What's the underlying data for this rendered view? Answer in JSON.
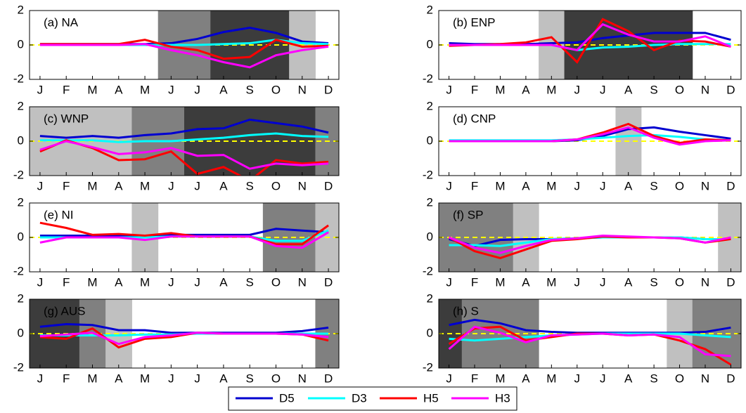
{
  "chart_data": [
    {
      "type": "line",
      "title": "(a) NA",
      "categories": [
        "J",
        "F",
        "M",
        "A",
        "M",
        "J",
        "J",
        "A",
        "S",
        "O",
        "N",
        "D"
      ],
      "ylim": [
        -2,
        2
      ],
      "yticks": [
        -2,
        0,
        2
      ],
      "hline": 0,
      "hline_color": "#ffff00",
      "shade": [
        null,
        null,
        null,
        null,
        null,
        "#808080",
        "#808080",
        "#3c3c3c",
        "#3c3c3c",
        "#3c3c3c",
        "#c0c0c0",
        null
      ],
      "series": [
        {
          "name": "D5",
          "color": "#0000d0",
          "values": [
            0.05,
            0.05,
            0.05,
            0.05,
            0.05,
            0.1,
            0.35,
            0.75,
            1.0,
            0.7,
            0.2,
            0.1
          ]
        },
        {
          "name": "D3",
          "color": "#00ffff",
          "values": [
            0,
            0,
            0,
            0,
            0,
            0,
            0,
            0.05,
            0.1,
            0.3,
            0.1,
            0.05
          ]
        },
        {
          "name": "H5",
          "color": "#ff0000",
          "values": [
            0.05,
            0.05,
            0.05,
            0.05,
            0.3,
            -0.1,
            -0.3,
            -0.8,
            -0.7,
            0.3,
            -0.1,
            -0.05
          ]
        },
        {
          "name": "H3",
          "color": "#ff00ff",
          "values": [
            0,
            0,
            0,
            0,
            0.05,
            -0.3,
            -0.6,
            -1.0,
            -1.3,
            -0.6,
            -0.3,
            -0.1
          ]
        }
      ]
    },
    {
      "type": "line",
      "title": "(b) ENP",
      "categories": [
        "J",
        "F",
        "M",
        "A",
        "M",
        "J",
        "J",
        "A",
        "S",
        "O",
        "N",
        "D"
      ],
      "ylim": [
        -2,
        2
      ],
      "yticks": [
        -2,
        0,
        2
      ],
      "hline": 0,
      "hline_color": "#ffff00",
      "shade": [
        null,
        null,
        null,
        null,
        "#c0c0c0",
        "#3c3c3c",
        "#3c3c3c",
        "#3c3c3c",
        "#3c3c3c",
        "#3c3c3c",
        null,
        null
      ],
      "series": [
        {
          "name": "D5",
          "color": "#0000d0",
          "values": [
            0.1,
            0.05,
            0.05,
            0.05,
            0.1,
            0.15,
            0.4,
            0.55,
            0.7,
            0.7,
            0.7,
            0.3
          ]
        },
        {
          "name": "D3",
          "color": "#00ffff",
          "values": [
            0,
            0,
            0,
            0,
            0,
            -0.3,
            -0.15,
            -0.1,
            0,
            0.05,
            0.05,
            0.05
          ]
        },
        {
          "name": "H5",
          "color": "#ff0000",
          "values": [
            -0.05,
            0,
            0.05,
            0.15,
            0.45,
            -1.0,
            1.5,
            0.8,
            -0.3,
            0.25,
            0.2,
            -0.1
          ]
        },
        {
          "name": "H3",
          "color": "#ff00ff",
          "values": [
            0,
            0,
            0,
            0,
            0,
            -0.3,
            1.2,
            0.6,
            0.2,
            0.2,
            0.5,
            -0.1
          ]
        }
      ]
    },
    {
      "type": "line",
      "title": "(c) WNP",
      "categories": [
        "J",
        "F",
        "M",
        "A",
        "M",
        "J",
        "J",
        "A",
        "S",
        "O",
        "N",
        "D"
      ],
      "ylim": [
        -2,
        2
      ],
      "yticks": [
        -2,
        0,
        2
      ],
      "hline": 0,
      "hline_color": "#ffff00",
      "shade": [
        "#c0c0c0",
        "#c0c0c0",
        "#c0c0c0",
        "#c0c0c0",
        "#808080",
        "#808080",
        "#3c3c3c",
        "#3c3c3c",
        "#3c3c3c",
        "#3c3c3c",
        "#3c3c3c",
        "#808080"
      ],
      "series": [
        {
          "name": "D5",
          "color": "#0000d0",
          "values": [
            0.3,
            0.2,
            0.3,
            0.2,
            0.35,
            0.45,
            0.7,
            0.75,
            1.25,
            1.05,
            0.85,
            0.5
          ]
        },
        {
          "name": "D3",
          "color": "#00ffff",
          "values": [
            0.05,
            0.05,
            0.05,
            -0.05,
            0,
            0,
            0.1,
            0.2,
            0.35,
            0.45,
            0.3,
            0.25
          ]
        },
        {
          "name": "H5",
          "color": "#ff0000",
          "values": [
            -0.6,
            0.05,
            -0.4,
            -1.1,
            -1.05,
            -0.6,
            -1.9,
            -1.5,
            -2.3,
            -1.1,
            -1.3,
            -1.2
          ]
        },
        {
          "name": "H3",
          "color": "#ff00ff",
          "values": [
            -0.5,
            0,
            -0.35,
            -0.75,
            -0.65,
            -0.4,
            -0.85,
            -0.8,
            -1.6,
            -1.3,
            -1.4,
            -1.3
          ]
        }
      ]
    },
    {
      "type": "line",
      "title": "(d) CNP",
      "categories": [
        "J",
        "F",
        "M",
        "A",
        "M",
        "J",
        "J",
        "A",
        "S",
        "O",
        "N",
        "D"
      ],
      "ylim": [
        -2,
        2
      ],
      "yticks": [
        -2,
        0,
        2
      ],
      "hline": 0,
      "hline_color": "#ffff00",
      "shade": [
        null,
        null,
        null,
        null,
        null,
        null,
        null,
        "#c0c0c0",
        null,
        null,
        null,
        null
      ],
      "series": [
        {
          "name": "D5",
          "color": "#0000d0",
          "values": [
            0,
            0,
            0,
            0,
            0,
            0.05,
            0.3,
            0.7,
            0.8,
            0.55,
            0.35,
            0.15
          ]
        },
        {
          "name": "D3",
          "color": "#00ffff",
          "values": [
            0.05,
            0.05,
            0.05,
            0.05,
            0.05,
            0.1,
            0.2,
            0.3,
            0.35,
            0.25,
            0.1,
            0.05
          ]
        },
        {
          "name": "H5",
          "color": "#ff0000",
          "values": [
            0,
            0,
            0,
            0,
            0,
            0.1,
            0.5,
            1.0,
            0.3,
            -0.1,
            0.1,
            0.05
          ]
        },
        {
          "name": "H3",
          "color": "#ff00ff",
          "values": [
            0,
            0,
            0,
            0,
            0,
            0.1,
            0.4,
            0.8,
            0.2,
            -0.2,
            0,
            0.05
          ]
        }
      ]
    },
    {
      "type": "line",
      "title": "(e) NI",
      "categories": [
        "J",
        "F",
        "M",
        "A",
        "M",
        "J",
        "J",
        "A",
        "S",
        "O",
        "N",
        "D"
      ],
      "ylim": [
        -2,
        2
      ],
      "yticks": [
        -2,
        0,
        2
      ],
      "hline": 0,
      "hline_color": "#ffff00",
      "shade": [
        null,
        null,
        null,
        null,
        "#c0c0c0",
        null,
        null,
        null,
        null,
        "#808080",
        "#808080",
        "#c0c0c0"
      ],
      "series": [
        {
          "name": "D5",
          "color": "#0000d0",
          "values": [
            0.1,
            0.1,
            0.1,
            0.1,
            0.05,
            0.15,
            0.15,
            0.15,
            0.15,
            0.5,
            0.4,
            0.3
          ]
        },
        {
          "name": "D3",
          "color": "#00ffff",
          "values": [
            0,
            0,
            0,
            0,
            0,
            0.05,
            0.05,
            0.05,
            0.05,
            -0.2,
            -0.2,
            0.4
          ]
        },
        {
          "name": "H5",
          "color": "#ff0000",
          "values": [
            0.85,
            0.55,
            0.15,
            0.2,
            0.1,
            0.25,
            0.05,
            0.05,
            0.05,
            -0.4,
            -0.4,
            0.7
          ]
        },
        {
          "name": "H3",
          "color": "#ff00ff",
          "values": [
            -0.3,
            0,
            0,
            0,
            -0.15,
            0.05,
            0.05,
            0.05,
            0.05,
            -0.5,
            -0.6,
            0.3
          ]
        }
      ]
    },
    {
      "type": "line",
      "title": "(f) SP",
      "categories": [
        "J",
        "F",
        "M",
        "A",
        "M",
        "J",
        "J",
        "A",
        "S",
        "O",
        "N",
        "D"
      ],
      "ylim": [
        -2,
        2
      ],
      "yticks": [
        -2,
        0,
        2
      ],
      "hline": 0,
      "hline_color": "#ffff00",
      "shade": [
        "#808080",
        "#808080",
        "#808080",
        "#c0c0c0",
        null,
        null,
        null,
        null,
        null,
        null,
        null,
        "#c0c0c0"
      ],
      "series": [
        {
          "name": "D5",
          "color": "#0000d0",
          "values": [
            -0.1,
            -0.5,
            -0.15,
            -0.1,
            -0.1,
            -0.05,
            0,
            0,
            0,
            0,
            -0.1,
            -0.1
          ]
        },
        {
          "name": "D3",
          "color": "#00ffff",
          "values": [
            -0.45,
            -0.45,
            -0.5,
            -0.3,
            -0.1,
            -0.05,
            0,
            0,
            0,
            0,
            -0.1,
            -0.1
          ]
        },
        {
          "name": "H5",
          "color": "#ff0000",
          "values": [
            0,
            -0.8,
            -1.2,
            -0.7,
            -0.2,
            -0.1,
            0.05,
            0,
            0,
            -0.05,
            -0.3,
            -0.1
          ]
        },
        {
          "name": "H3",
          "color": "#ff00ff",
          "values": [
            0,
            -0.6,
            -0.9,
            -0.5,
            -0.15,
            -0.05,
            0.1,
            0.05,
            0,
            -0.05,
            -0.3,
            0
          ]
        }
      ]
    },
    {
      "type": "line",
      "title": "(g) AUS",
      "categories": [
        "J",
        "F",
        "M",
        "A",
        "M",
        "J",
        "J",
        "A",
        "S",
        "O",
        "N",
        "D"
      ],
      "ylim": [
        -2,
        2
      ],
      "yticks": [
        -2,
        0,
        2
      ],
      "hline": 0,
      "hline_color": "#ffff00",
      "shade": [
        "#3c3c3c",
        "#3c3c3c",
        "#808080",
        "#c0c0c0",
        null,
        null,
        null,
        null,
        null,
        null,
        null,
        "#808080"
      ],
      "series": [
        {
          "name": "D5",
          "color": "#0000d0",
          "values": [
            0.4,
            0.55,
            0.5,
            0.2,
            0.2,
            0.05,
            0.05,
            0.05,
            0.05,
            0.05,
            0.15,
            0.35
          ]
        },
        {
          "name": "D3",
          "color": "#00ffff",
          "values": [
            -0.1,
            -0.1,
            -0.1,
            -0.1,
            -0.05,
            -0.05,
            0,
            0,
            0,
            0,
            0,
            0
          ]
        },
        {
          "name": "H5",
          "color": "#ff0000",
          "values": [
            -0.2,
            -0.3,
            0.3,
            -0.8,
            -0.3,
            -0.2,
            0.05,
            0,
            0,
            0,
            -0.05,
            -0.4
          ]
        },
        {
          "name": "H3",
          "color": "#ff00ff",
          "values": [
            -0.15,
            -0.05,
            0.05,
            -0.6,
            -0.2,
            -0.1,
            0.05,
            0,
            0,
            0,
            -0.05,
            -0.2
          ]
        }
      ]
    },
    {
      "type": "line",
      "title": "(h) S",
      "categories": [
        "J",
        "F",
        "M",
        "A",
        "M",
        "J",
        "J",
        "A",
        "S",
        "O",
        "N",
        "D"
      ],
      "ylim": [
        -2,
        2
      ],
      "yticks": [
        -2,
        0,
        2
      ],
      "hline": 0,
      "hline_color": "#ffff00",
      "shade": [
        "#3c3c3c",
        "#808080",
        "#808080",
        "#808080",
        null,
        null,
        null,
        null,
        null,
        "#c0c0c0",
        "#808080",
        "#808080"
      ],
      "series": [
        {
          "name": "D5",
          "color": "#0000d0",
          "values": [
            0.5,
            0.8,
            0.6,
            0.2,
            0.1,
            0.05,
            0.05,
            0.05,
            0.05,
            0.05,
            0.1,
            0.35
          ]
        },
        {
          "name": "D3",
          "color": "#00ffff",
          "values": [
            -0.3,
            -0.4,
            -0.3,
            -0.2,
            -0.1,
            -0.05,
            0,
            0,
            0,
            0,
            -0.1,
            -0.2
          ]
        },
        {
          "name": "H5",
          "color": "#ff0000",
          "values": [
            -0.6,
            0.3,
            0.4,
            -0.4,
            -0.2,
            0,
            0,
            -0.1,
            -0.05,
            -0.4,
            -0.9,
            -1.8
          ]
        },
        {
          "name": "H3",
          "color": "#ff00ff",
          "values": [
            -0.9,
            0.4,
            0.05,
            -0.5,
            -0.1,
            -0.05,
            0,
            -0.1,
            -0.05,
            -0.2,
            -1.2,
            -1.3
          ]
        }
      ]
    }
  ]
}
